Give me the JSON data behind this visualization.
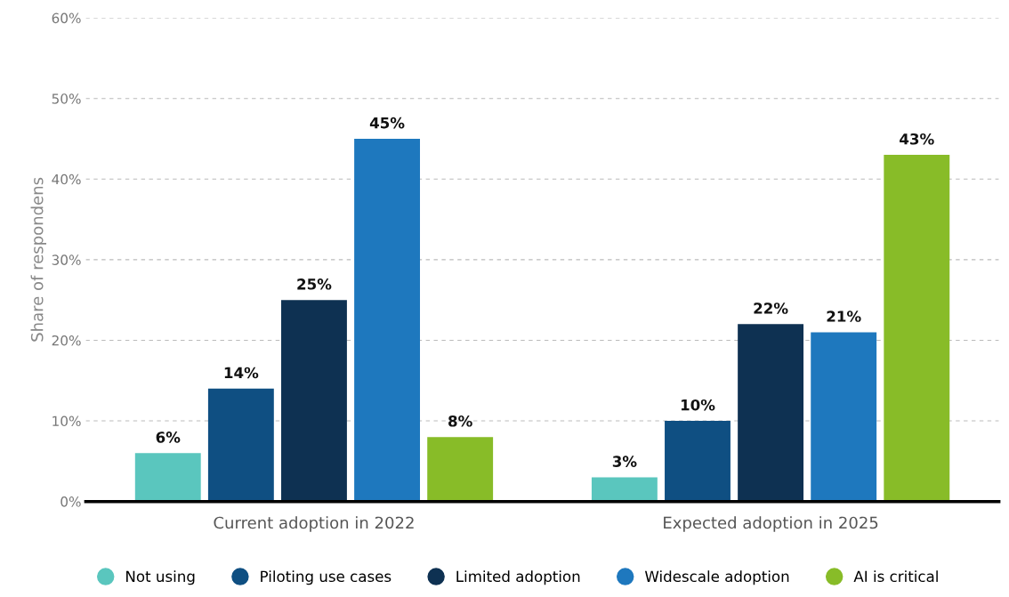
{
  "chart_data": {
    "type": "bar",
    "ylabel": "Share of respondens",
    "categories": [
      "Current adoption in 2022",
      "Expected adoption in 2025"
    ],
    "series": [
      {
        "name": "Not using",
        "color": "#5ac6be",
        "values": [
          6,
          3
        ],
        "value_labels": [
          "6%",
          "3%"
        ]
      },
      {
        "name": "Piloting use cases",
        "color": "#0f4f82",
        "values": [
          14,
          10
        ],
        "value_labels": [
          "14%",
          "10%"
        ]
      },
      {
        "name": "Limited adoption",
        "color": "#0e3152",
        "values": [
          25,
          22
        ],
        "value_labels": [
          "25%",
          "22%"
        ]
      },
      {
        "name": "Widescale adoption",
        "color": "#1e78be",
        "values": [
          45,
          21
        ],
        "value_labels": [
          "45%",
          "21%"
        ]
      },
      {
        "name": "AI is critical",
        "color": "#88bc28",
        "values": [
          8,
          43
        ],
        "value_labels": [
          "8%",
          "43%"
        ]
      }
    ],
    "ylim": [
      0,
      60
    ],
    "yticks": [
      {
        "value": 0,
        "label": "0%"
      },
      {
        "value": 10,
        "label": "10%"
      },
      {
        "value": 20,
        "label": "20%"
      },
      {
        "value": 30,
        "label": "30%"
      },
      {
        "value": 40,
        "label": "40%"
      },
      {
        "value": 50,
        "label": "50%"
      },
      {
        "value": 60,
        "label": "60%"
      }
    ],
    "grid": "y",
    "legend": "bottom",
    "marker": "circle"
  }
}
